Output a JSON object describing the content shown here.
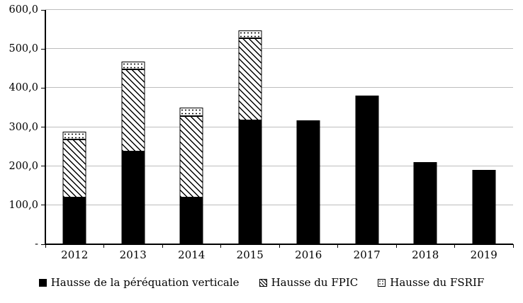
{
  "chart_data": {
    "type": "bar",
    "stacked": true,
    "title": "",
    "xlabel": "",
    "ylabel": "",
    "categories": [
      "2012",
      "2013",
      "2014",
      "2015",
      "2016",
      "2017",
      "2018",
      "2019"
    ],
    "series": [
      {
        "name": "Hausse de la péréquation verticale",
        "pattern": "solid",
        "values": [
          119,
          238,
          119,
          317,
          317,
          380,
          210,
          190
        ]
      },
      {
        "name": "Hausse du FPIC",
        "pattern": "hatch",
        "values": [
          150,
          210,
          210,
          210,
          0,
          0,
          0,
          0
        ]
      },
      {
        "name": "Hausse du FSRIF",
        "pattern": "dots",
        "values": [
          20,
          20,
          20,
          20,
          0,
          0,
          0,
          0
        ]
      }
    ],
    "y_ticks": [
      "600,0",
      "500,0",
      "400,0",
      "300,0",
      "200,0",
      "100,0",
      "-"
    ],
    "y_tick_values": [
      600,
      500,
      400,
      300,
      200,
      100,
      0
    ],
    "ylim": [
      0,
      600
    ],
    "grid": true,
    "legend_position": "bottom"
  },
  "colors": {
    "bar_fill": "#000000",
    "gridline": "#bdbdbd",
    "axis": "#000000",
    "background": "#ffffff"
  }
}
